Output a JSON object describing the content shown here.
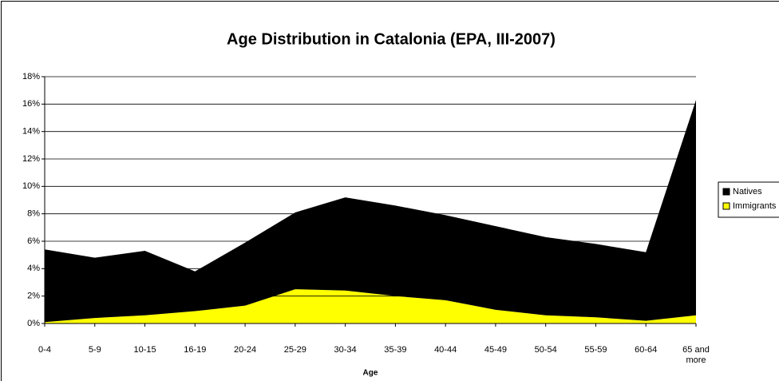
{
  "chart_data": {
    "type": "area",
    "stacked": true,
    "title": "Age Distribution in Catalonia (EPA, III-2007)",
    "x_label": "Age",
    "categories": [
      "0-4",
      "5-9",
      "10-15",
      "16-19",
      "20-24",
      "25-29",
      "30-34",
      "35-39",
      "40-44",
      "45-49",
      "50-54",
      "55-59",
      "60-64",
      "65 and more"
    ],
    "series": [
      {
        "name": "Immigrants",
        "color": "#ffff00",
        "values": [
          0.1,
          0.4,
          0.6,
          0.9,
          1.3,
          2.5,
          2.4,
          2.0,
          1.7,
          1.0,
          0.6,
          0.45,
          0.2,
          0.6
        ]
      },
      {
        "name": "Natives",
        "color": "#000000",
        "values": [
          5.3,
          4.4,
          4.7,
          2.9,
          4.6,
          5.6,
          6.8,
          6.6,
          6.2,
          6.1,
          5.7,
          5.35,
          5.0,
          15.7
        ]
      }
    ],
    "ylim": [
      0,
      18
    ],
    "yticks": [
      {
        "value": 0,
        "label": "0%"
      },
      {
        "value": 2,
        "label": "2%"
      },
      {
        "value": 4,
        "label": "4%"
      },
      {
        "value": 6,
        "label": "6%"
      },
      {
        "value": 8,
        "label": "8%"
      },
      {
        "value": 10,
        "label": "10%"
      },
      {
        "value": 12,
        "label": "12%"
      },
      {
        "value": 14,
        "label": "14%"
      },
      {
        "value": 16,
        "label": "16%"
      },
      {
        "value": 18,
        "label": "18%"
      }
    ],
    "grid": true,
    "legend": "right"
  }
}
